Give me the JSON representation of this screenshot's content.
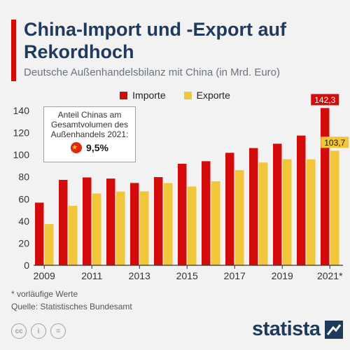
{
  "header": {
    "title": "China-Import und -Export auf Rekordhoch",
    "subtitle": "Deutsche Außenhandelsbilanz mit China (in Mrd. Euro)"
  },
  "callout": {
    "text": "Anteil Chinas am Gesamtvolumen des Außenhandels 2021:",
    "value": "9,5%"
  },
  "footer": {
    "footnote": "* vorläufige Werte",
    "source": "Quelle: Statistisches Bundesamt",
    "logo": "statista"
  },
  "colors": {
    "import": "#d40b0b",
    "export": "#f0c63a",
    "title": "#1f3a5a"
  },
  "chart_data": {
    "type": "bar",
    "categories": [
      "2009",
      "2010",
      "2011",
      "2012",
      "2013",
      "2014",
      "2015",
      "2016",
      "2017",
      "2018",
      "2019",
      "2020",
      "2021*"
    ],
    "tick_labels": [
      "2009",
      "",
      "2011",
      "",
      "2013",
      "",
      "2015",
      "",
      "2017",
      "",
      "2019",
      "",
      "2021*"
    ],
    "series": [
      {
        "name": "Importe",
        "values": [
          56.7,
          77.3,
          79.5,
          78.5,
          74.5,
          79.8,
          91.9,
          94.2,
          101.8,
          106.1,
          110.0,
          117.4,
          142.3
        ]
      },
      {
        "name": "Exporte",
        "values": [
          37.3,
          53.8,
          65.0,
          66.7,
          66.9,
          74.4,
          71.3,
          76.0,
          86.1,
          93.0,
          96.0,
          95.9,
          103.7
        ]
      }
    ],
    "data_labels": {
      "Importe_last": "142,3",
      "Exporte_last": "103,7"
    },
    "ylim": [
      0,
      145
    ],
    "yticks": [
      0,
      20,
      40,
      60,
      80,
      100,
      120,
      140
    ],
    "legend_position": "top-center",
    "grid": false
  }
}
